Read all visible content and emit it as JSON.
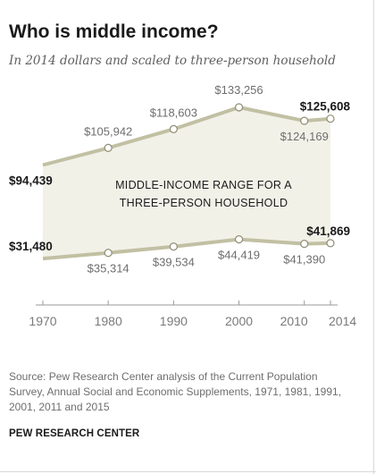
{
  "title": "Who is middle income?",
  "subtitle": "In 2014 dollars and scaled to three-person household",
  "source": "Source: Pew Research Center analysis of the Current Population Survey, Annual Social and Economic Supplements, 1971, 1981, 1991, 2001, 2011 and 2015",
  "credit": "PEW RESEARCH CENTER",
  "chart_data": {
    "type": "area",
    "title": "Who is middle income?",
    "subtitle": "In 2014 dollars and scaled to three-person household",
    "x": [
      1970,
      1980,
      1990,
      2000,
      2010,
      2014
    ],
    "x_tick_labels": [
      "1970",
      "1980",
      "1990",
      "2000",
      "2010",
      "2014"
    ],
    "series": [
      {
        "values": [
          94439,
          105942,
          118603,
          133256,
          124169,
          125608
        ],
        "labels": [
          "$94,439",
          "$105,942",
          "$118,603",
          "$133,256",
          "$124,169",
          "$125,608"
        ]
      },
      {
        "values": [
          31480,
          35314,
          39534,
          44419,
          41390,
          41869
        ],
        "labels": [
          "$31,480",
          "$35,314",
          "$39,534",
          "$44,419",
          "$41,390",
          "$41,869"
        ]
      }
    ],
    "band_label": [
      "MIDDLE-INCOME RANGE FOR A",
      "THREE-PERSON HOUSEHOLD"
    ],
    "colors": {
      "line": "#c2c0a3",
      "band": "#f2f1e8",
      "axis": "#999999",
      "text": "#6e6e6e",
      "emphasis": "#1a1a1a"
    },
    "grid": false,
    "legend": "none"
  }
}
